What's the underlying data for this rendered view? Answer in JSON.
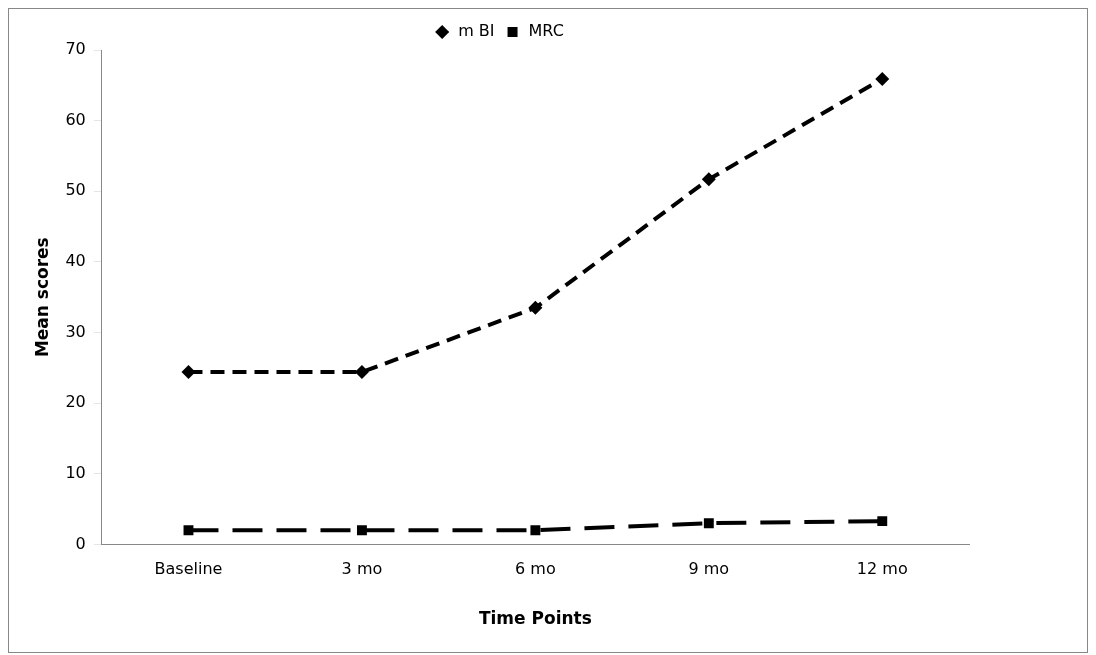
{
  "chart_data": {
    "type": "line",
    "xlabel": "Time Points",
    "ylabel": "Mean scores",
    "categories": [
      "Baseline",
      "3 mo",
      "6 mo",
      "9 mo",
      "12 mo"
    ],
    "series": [
      {
        "name": "m BI",
        "color": "#000000",
        "marker": "diamond",
        "line_style": "dashed",
        "values": [
          24.4,
          24.4,
          33.5,
          51.7,
          65.9
        ]
      },
      {
        "name": "MRC",
        "color": "#000000",
        "marker": "square",
        "line_style": "dashed",
        "values": [
          2.0,
          2.0,
          2.0,
          3.0,
          3.3
        ]
      }
    ],
    "ylim": [
      0,
      70
    ],
    "yticks": [
      0,
      10,
      20,
      30,
      40,
      50,
      60,
      70
    ],
    "grid": false,
    "legend": "top"
  }
}
